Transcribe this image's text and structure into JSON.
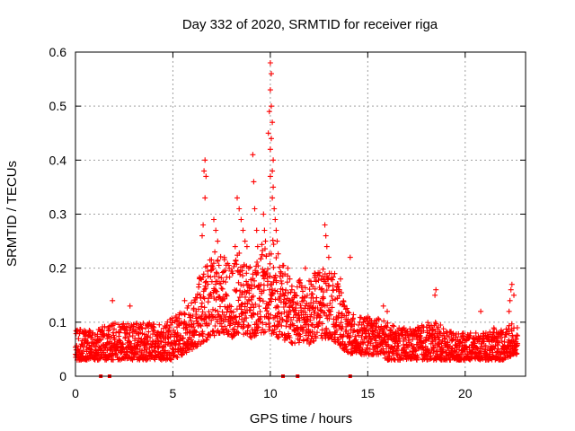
{
  "chart_data": {
    "type": "scatter",
    "title": "Day 332 of 2020, SRMTID for receiver riga",
    "xlabel": "GPS time / hours",
    "ylabel": "SRMTID / TECUs",
    "xlim": [
      0,
      23.1
    ],
    "ylim": [
      0,
      0.6
    ],
    "x_ticks": [
      0,
      5,
      10,
      15,
      20
    ],
    "x_tick_labels": [
      "0",
      "5",
      "10",
      "15",
      "20"
    ],
    "y_ticks": [
      0,
      0.1,
      0.2,
      0.3,
      0.4,
      0.5,
      0.6
    ],
    "y_tick_labels": [
      "0",
      "0.1",
      "0.2",
      "0.3",
      "0.4",
      "0.5",
      "0.6"
    ],
    "grid": true,
    "marker": "+",
    "series_color": "#ff0000",
    "gap_marker_times": [
      1.3,
      1.75,
      10.65,
      11.4,
      14.1
    ],
    "envelope": [
      [
        0.0,
        0.03,
        0.09
      ],
      [
        0.5,
        0.03,
        0.09
      ],
      [
        1.0,
        0.03,
        0.08
      ],
      [
        1.5,
        0.03,
        0.1
      ],
      [
        2.0,
        0.03,
        0.1
      ],
      [
        2.5,
        0.03,
        0.1
      ],
      [
        3.0,
        0.03,
        0.1
      ],
      [
        3.5,
        0.03,
        0.1
      ],
      [
        4.0,
        0.03,
        0.1
      ],
      [
        4.5,
        0.03,
        0.1
      ],
      [
        5.0,
        0.03,
        0.11
      ],
      [
        5.5,
        0.04,
        0.12
      ],
      [
        6.0,
        0.05,
        0.14
      ],
      [
        6.5,
        0.06,
        0.2
      ],
      [
        7.0,
        0.07,
        0.22
      ],
      [
        7.5,
        0.08,
        0.23
      ],
      [
        8.0,
        0.07,
        0.2
      ],
      [
        8.5,
        0.08,
        0.24
      ],
      [
        9.0,
        0.07,
        0.2
      ],
      [
        9.5,
        0.08,
        0.24
      ],
      [
        10.0,
        0.08,
        0.27
      ],
      [
        10.5,
        0.07,
        0.22
      ],
      [
        11.0,
        0.06,
        0.18
      ],
      [
        11.5,
        0.06,
        0.18
      ],
      [
        12.0,
        0.06,
        0.18
      ],
      [
        12.5,
        0.07,
        0.2
      ],
      [
        13.0,
        0.07,
        0.2
      ],
      [
        13.5,
        0.06,
        0.17
      ],
      [
        14.0,
        0.04,
        0.12
      ],
      [
        14.5,
        0.04,
        0.11
      ],
      [
        15.0,
        0.04,
        0.11
      ],
      [
        15.5,
        0.04,
        0.11
      ],
      [
        16.0,
        0.03,
        0.1
      ],
      [
        16.5,
        0.03,
        0.09
      ],
      [
        17.0,
        0.03,
        0.09
      ],
      [
        17.5,
        0.03,
        0.09
      ],
      [
        18.0,
        0.03,
        0.1
      ],
      [
        18.5,
        0.03,
        0.1
      ],
      [
        19.0,
        0.03,
        0.09
      ],
      [
        19.5,
        0.03,
        0.08
      ],
      [
        20.0,
        0.03,
        0.08
      ],
      [
        20.5,
        0.03,
        0.08
      ],
      [
        21.0,
        0.03,
        0.08
      ],
      [
        21.5,
        0.03,
        0.09
      ],
      [
        22.0,
        0.03,
        0.09
      ],
      [
        22.5,
        0.04,
        0.1
      ],
      [
        22.7,
        0.04,
        0.1
      ]
    ],
    "peaks": [
      {
        "x": 6.65,
        "y": 0.4
      },
      {
        "x": 6.6,
        "y": 0.38
      },
      {
        "x": 6.7,
        "y": 0.37
      },
      {
        "x": 6.65,
        "y": 0.33
      },
      {
        "x": 6.55,
        "y": 0.28
      },
      {
        "x": 6.5,
        "y": 0.26
      },
      {
        "x": 7.1,
        "y": 0.29
      },
      {
        "x": 7.2,
        "y": 0.27
      },
      {
        "x": 7.3,
        "y": 0.25
      },
      {
        "x": 7.15,
        "y": 0.23
      },
      {
        "x": 8.3,
        "y": 0.33
      },
      {
        "x": 8.4,
        "y": 0.31
      },
      {
        "x": 8.5,
        "y": 0.29
      },
      {
        "x": 8.6,
        "y": 0.27
      },
      {
        "x": 8.7,
        "y": 0.25
      },
      {
        "x": 8.8,
        "y": 0.24
      },
      {
        "x": 8.2,
        "y": 0.24
      },
      {
        "x": 9.1,
        "y": 0.41
      },
      {
        "x": 9.15,
        "y": 0.36
      },
      {
        "x": 9.2,
        "y": 0.31
      },
      {
        "x": 9.3,
        "y": 0.27
      },
      {
        "x": 9.35,
        "y": 0.24
      },
      {
        "x": 9.65,
        "y": 0.3
      },
      {
        "x": 9.7,
        "y": 0.27
      },
      {
        "x": 9.75,
        "y": 0.25
      },
      {
        "x": 9.9,
        "y": 0.45
      },
      {
        "x": 10.0,
        "y": 0.58
      },
      {
        "x": 10.05,
        "y": 0.56
      },
      {
        "x": 10.0,
        "y": 0.53
      },
      {
        "x": 10.05,
        "y": 0.5
      },
      {
        "x": 9.95,
        "y": 0.49
      },
      {
        "x": 10.1,
        "y": 0.47
      },
      {
        "x": 10.05,
        "y": 0.44
      },
      {
        "x": 10.0,
        "y": 0.42
      },
      {
        "x": 10.15,
        "y": 0.4
      },
      {
        "x": 10.1,
        "y": 0.38
      },
      {
        "x": 10.0,
        "y": 0.37
      },
      {
        "x": 10.15,
        "y": 0.35
      },
      {
        "x": 10.1,
        "y": 0.33
      },
      {
        "x": 10.2,
        "y": 0.31
      },
      {
        "x": 10.25,
        "y": 0.29
      },
      {
        "x": 10.3,
        "y": 0.27
      },
      {
        "x": 10.35,
        "y": 0.25
      },
      {
        "x": 12.8,
        "y": 0.28
      },
      {
        "x": 12.85,
        "y": 0.26
      },
      {
        "x": 12.9,
        "y": 0.24
      },
      {
        "x": 13.0,
        "y": 0.22
      },
      {
        "x": 14.1,
        "y": 0.22
      },
      {
        "x": 18.5,
        "y": 0.16
      },
      {
        "x": 18.45,
        "y": 0.15
      },
      {
        "x": 22.4,
        "y": 0.17
      },
      {
        "x": 22.35,
        "y": 0.16
      },
      {
        "x": 22.5,
        "y": 0.15
      },
      {
        "x": 22.3,
        "y": 0.14
      },
      {
        "x": 22.25,
        "y": 0.12
      },
      {
        "x": 10.9,
        "y": 0.2
      },
      {
        "x": 11.0,
        "y": 0.18
      },
      {
        "x": 11.8,
        "y": 0.2
      },
      {
        "x": 12.3,
        "y": 0.19
      },
      {
        "x": 13.3,
        "y": 0.19
      },
      {
        "x": 13.6,
        "y": 0.18
      },
      {
        "x": 12.1,
        "y": 0.17
      },
      {
        "x": 13.4,
        "y": 0.16
      },
      {
        "x": 15.8,
        "y": 0.13
      },
      {
        "x": 16.0,
        "y": 0.12
      },
      {
        "x": 1.9,
        "y": 0.14
      },
      {
        "x": 2.8,
        "y": 0.13
      },
      {
        "x": 5.6,
        "y": 0.14
      },
      {
        "x": 20.8,
        "y": 0.12
      }
    ]
  }
}
